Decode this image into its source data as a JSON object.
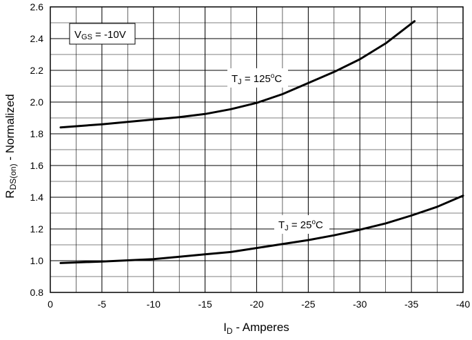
{
  "chart_data": {
    "type": "line",
    "xlabel": {
      "main": "I",
      "sub": "D",
      "rest": " - Amperes"
    },
    "ylabel": {
      "main": "R",
      "sub": "DS(on)",
      "rest": " - Normalized"
    },
    "xlim": [
      0,
      -40
    ],
    "ylim": [
      0.8,
      2.6
    ],
    "x_major_ticks": [
      0,
      -5,
      -10,
      -15,
      -20,
      -25,
      -30,
      -35,
      -40
    ],
    "x_tick_labels": [
      "0",
      "-5",
      "-10",
      "-15",
      "-20",
      "-25",
      "-30",
      "-35",
      "-40"
    ],
    "x_minor_step": -2.5,
    "y_major_ticks": [
      0.8,
      1.0,
      1.2,
      1.4,
      1.6,
      1.8,
      2.0,
      2.2,
      2.4,
      2.6
    ],
    "y_tick_labels": [
      "0.8",
      "1.0",
      "1.2",
      "1.4",
      "1.6",
      "1.8",
      "2.0",
      "2.2",
      "2.4",
      "2.6"
    ],
    "y_minor_step": 0.1,
    "grid": true,
    "condition_box": {
      "main": "V",
      "sub": "GS",
      "rest": " = -10V"
    },
    "series": [
      {
        "label": {
          "main": "T",
          "sub": "J",
          "rest": " = 125",
          "sup": "o",
          "tail": "C"
        },
        "color": "#000000",
        "x": [
          -1,
          -3,
          -5,
          -7.5,
          -10,
          -12.5,
          -15,
          -17.5,
          -20,
          -22.5,
          -25,
          -27.5,
          -30,
          -32.5,
          -35.3
        ],
        "y": [
          1.84,
          1.85,
          1.86,
          1.875,
          1.89,
          1.905,
          1.925,
          1.955,
          1.995,
          2.05,
          2.12,
          2.19,
          2.27,
          2.37,
          2.51
        ]
      },
      {
        "label": {
          "main": "T",
          "sub": "J",
          "rest": " = 25",
          "sup": "o",
          "tail": "C"
        },
        "color": "#000000",
        "x": [
          -1,
          -5,
          -10,
          -15,
          -17.5,
          -20,
          -22.5,
          -25,
          -27.5,
          -30,
          -32.5,
          -35,
          -37.5,
          -40
        ],
        "y": [
          0.985,
          0.995,
          1.01,
          1.04,
          1.055,
          1.08,
          1.105,
          1.13,
          1.16,
          1.195,
          1.235,
          1.285,
          1.34,
          1.41
        ]
      }
    ]
  }
}
